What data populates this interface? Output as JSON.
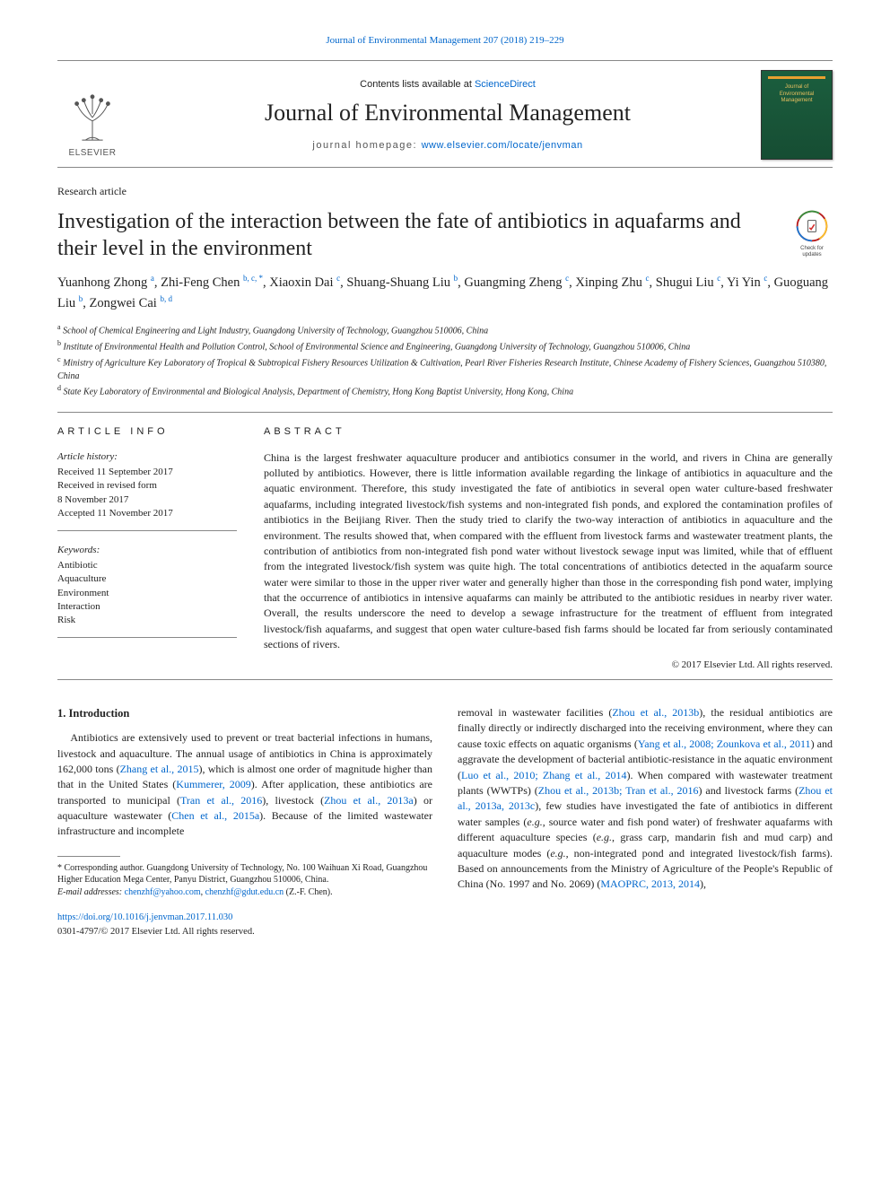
{
  "colors": {
    "link": "#0066cc",
    "text": "#222222",
    "rule": "#888888",
    "cover_bg_top": "#1b5e3e",
    "cover_bg_bottom": "#164d33",
    "cover_accent": "#e8a030",
    "cover_text": "#e8c060",
    "elsevier_orange": "#ef6c00"
  },
  "top_citation": "Journal of Environmental Management 207 (2018) 219–229",
  "masthead": {
    "publisher_name": "ELSEVIER",
    "contents_prefix": "Contents lists available at ",
    "contents_link": "ScienceDirect",
    "journal_name": "Journal of Environmental Management",
    "homepage_label": "journal homepage: ",
    "homepage_url": "www.elsevier.com/locate/jenvman",
    "cover_line1": "Journal of",
    "cover_line2": "Environmental",
    "cover_line3": "Management"
  },
  "article_type": "Research article",
  "title": "Investigation of the interaction between the fate of antibiotics in aquafarms and their level in the environment",
  "check_badge": "Check for updates",
  "authors_html": "Yuanhong Zhong <sup>a</sup>, Zhi-Feng Chen <sup>b, c, *</sup>, Xiaoxin Dai <sup>c</sup>, Shuang-Shuang Liu <sup>b</sup>, Guangming Zheng <sup>c</sup>, Xinping Zhu <sup>c</sup>, Shugui Liu <sup>c</sup>, Yi Yin <sup>c</sup>, Guoguang Liu <sup>b</sup>, Zongwei Cai <sup>b, d</sup>",
  "affiliations": [
    {
      "sup": "a",
      "text": "School of Chemical Engineering and Light Industry, Guangdong University of Technology, Guangzhou 510006, China"
    },
    {
      "sup": "b",
      "text": "Institute of Environmental Health and Pollution Control, School of Environmental Science and Engineering, Guangdong University of Technology, Guangzhou 510006, China"
    },
    {
      "sup": "c",
      "text": "Ministry of Agriculture Key Laboratory of Tropical & Subtropical Fishery Resources Utilization & Cultivation, Pearl River Fisheries Research Institute, Chinese Academy of Fishery Sciences, Guangzhou 510380, China"
    },
    {
      "sup": "d",
      "text": "State Key Laboratory of Environmental and Biological Analysis, Department of Chemistry, Hong Kong Baptist University, Hong Kong, China"
    }
  ],
  "article_info_head": "ARTICLE INFO",
  "abstract_head": "ABSTRACT",
  "history": {
    "label": "Article history:",
    "items": [
      "Received 11 September 2017",
      "Received in revised form",
      "8 November 2017",
      "Accepted 11 November 2017"
    ]
  },
  "keywords": {
    "label": "Keywords:",
    "items": [
      "Antibiotic",
      "Aquaculture",
      "Environment",
      "Interaction",
      "Risk"
    ]
  },
  "abstract_text": "China is the largest freshwater aquaculture producer and antibiotics consumer in the world, and rivers in China are generally polluted by antibiotics. However, there is little information available regarding the linkage of antibiotics in aquaculture and the aquatic environment. Therefore, this study investigated the fate of antibiotics in several open water culture-based freshwater aquafarms, including integrated livestock/fish systems and non-integrated fish ponds, and explored the contamination profiles of antibiotics in the Beijiang River. Then the study tried to clarify the two-way interaction of antibiotics in aquaculture and the environment. The results showed that, when compared with the effluent from livestock farms and wastewater treatment plants, the contribution of antibiotics from non-integrated fish pond water without livestock sewage input was limited, while that of effluent from the integrated livestock/fish system was quite high. The total concentrations of antibiotics detected in the aquafarm source water were similar to those in the upper river water and generally higher than those in the corresponding fish pond water, implying that the occurrence of antibiotics in intensive aquafarms can mainly be attributed to the antibiotic residues in nearby river water. Overall, the results underscore the need to develop a sewage infrastructure for the treatment of effluent from integrated livestock/fish aquafarms, and suggest that open water culture-based fish farms should be located far from seriously contaminated sections of rivers.",
  "abstract_copyright": "© 2017 Elsevier Ltd. All rights reserved.",
  "intro_heading": "1. Introduction",
  "intro_left_html": "Antibiotics are extensively used to prevent or treat bacterial infections in humans, livestock and aquaculture. The annual usage of antibiotics in China is approximately 162,000 tons (<span class=\"cite\">Zhang et al., 2015</span>), which is almost one order of magnitude higher than that in the United States (<span class=\"cite\">Kummerer, 2009</span>). After application, these antibiotics are transported to municipal (<span class=\"cite\">Tran et al., 2016</span>), livestock (<span class=\"cite\">Zhou et al., 2013a</span>) or aquaculture wastewater (<span class=\"cite\">Chen et al., 2015a</span>). Because of the limited wastewater infrastructure and incomplete",
  "intro_right_html": "removal in wastewater facilities (<span class=\"cite\">Zhou et al., 2013b</span>), the residual antibiotics are finally directly or indirectly discharged into the receiving environment, where they can cause toxic effects on aquatic organisms (<span class=\"cite\">Yang et al., 2008; Zounkova et al., 2011</span>) and aggravate the development of bacterial antibiotic-resistance in the aquatic environment (<span class=\"cite\">Luo et al., 2010; Zhang et al., 2014</span>). When compared with wastewater treatment plants (WWTPs) (<span class=\"cite\">Zhou et al., 2013b; Tran et al., 2016</span>) and livestock farms (<span class=\"cite\">Zhou et al., 2013a, 2013c</span>), few studies have investigated the fate of antibiotics in different water samples (<i>e.g.</i>, source water and fish pond water) of freshwater aquafarms with different aquaculture species (<i>e.g.</i>, grass carp, mandarin fish and mud carp) and aquaculture modes (<i>e.g.</i>, non-integrated pond and integrated livestock/fish farms). Based on announcements from the Ministry of Agriculture of the People's Republic of China (No. 1997 and No. 2069) (<span class=\"cite\">MAOPRC, 2013, 2014</span>),",
  "corresponding": {
    "star": "*",
    "text": "Corresponding author. Guangdong University of Technology, No. 100 Waihuan Xi Road, Guangzhou Higher Education Mega Center, Panyu District, Guangzhou 510006, China.",
    "email_label": "E-mail addresses:",
    "email1": "chenzhf@yahoo.com",
    "email2": "chenzhf@gdut.edu.cn",
    "email_suffix": "(Z.-F. Chen)."
  },
  "footer": {
    "doi": "https://doi.org/10.1016/j.jenvman.2017.11.030",
    "issn_cp": "0301-4797/© 2017 Elsevier Ltd. All rights reserved."
  }
}
